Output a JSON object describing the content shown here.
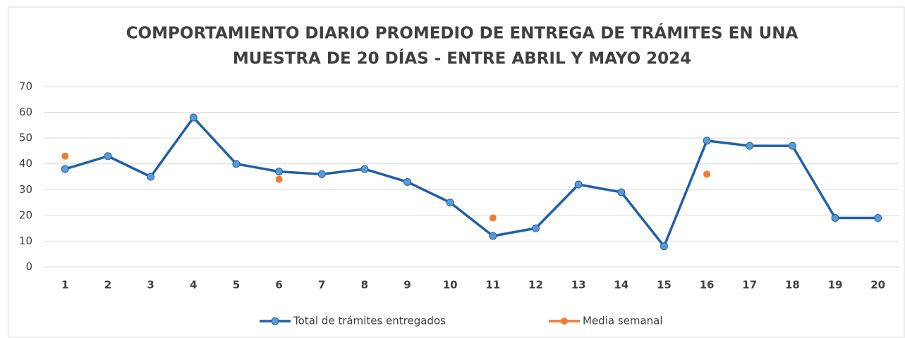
{
  "chart_data": {
    "type": "line",
    "title": [
      "COMPORTAMIENTO DIARIO PROMEDIO DE ENTREGA DE TRÁMITES EN UNA",
      "MUESTRA DE 20 DÍAS - ENTRE ABRIL Y MAYO 2024"
    ],
    "categories": [
      "1",
      "2",
      "3",
      "4",
      "5",
      "6",
      "7",
      "8",
      "9",
      "10",
      "11",
      "12",
      "13",
      "14",
      "15",
      "16",
      "17",
      "18",
      "19",
      "20"
    ],
    "series": [
      {
        "name": "Total de trámites entregados",
        "color": "#1f5fa8",
        "marker_color": "#5b9bd5",
        "show_line": true,
        "values": [
          38,
          43,
          35,
          58,
          40,
          37,
          36,
          38,
          33,
          25,
          12,
          15,
          32,
          29,
          8,
          49,
          47,
          47,
          19,
          19
        ]
      },
      {
        "name": "Media semanal",
        "color": "#ed7d31",
        "marker_color": "#ed7d31",
        "show_line": false,
        "values": [
          43,
          null,
          null,
          null,
          null,
          34,
          null,
          null,
          null,
          null,
          19,
          null,
          null,
          null,
          null,
          36,
          null,
          null,
          null,
          null
        ]
      }
    ],
    "ylim": [
      0,
      70
    ],
    "yticks": [
      0,
      10,
      20,
      30,
      40,
      50,
      60,
      70
    ],
    "grid": true,
    "legend": "bottom"
  }
}
